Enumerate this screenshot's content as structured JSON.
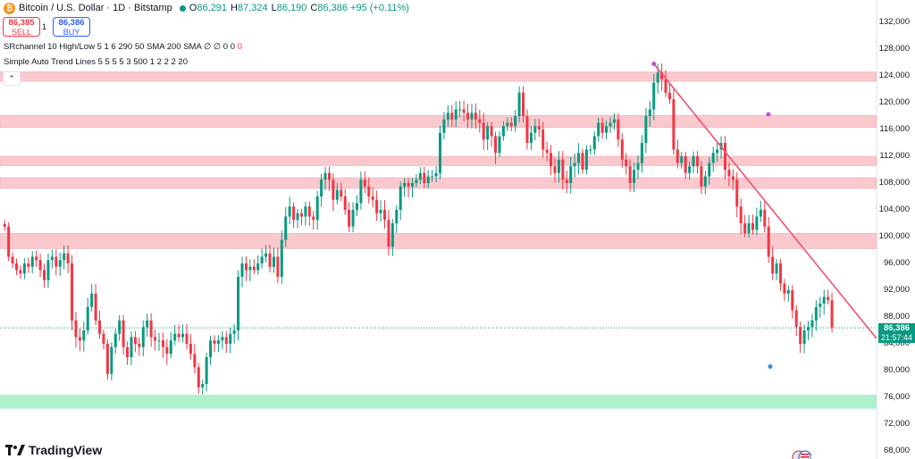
{
  "header": {
    "logo_glyph": "₿",
    "title": "Bitcoin / U.S. Dollar · 1D · Bitstamp",
    "o_label": "O",
    "o_val": "86,291",
    "h_label": "H",
    "h_val": "87,324",
    "l_label": "L",
    "l_val": "86,190",
    "c_label": "C",
    "c_val": "86,386 +95 (+0.11%)"
  },
  "trade": {
    "sell_price": "86,385",
    "sell_label": "SELL",
    "spread": "1",
    "buy_price": "86,386",
    "buy_label": "BUY"
  },
  "indicators": {
    "sr_name": "SRchannel 10 High/Low 5 1 6 290 50 SMA 200 SMA",
    "sr_vals": "∅ ∅ 0 0",
    "sr_vals_red": "0",
    "trend_name": "Simple Auto Trend Lines 5 5 5 5 3 500 1 2 2 2 20"
  },
  "collapse_glyph": "⌃",
  "price_axis": [
    "132,000",
    "128,000",
    "124,000",
    "120,000",
    "116,000",
    "112,000",
    "108,000",
    "104,000",
    "100,000",
    "96,000",
    "92,000",
    "88,000",
    "84,000",
    "80,000",
    "76,000",
    "72,000",
    "68,000"
  ],
  "last_price": {
    "value": "86,386",
    "countdown": "21:57:44"
  },
  "brand": {
    "name": "TradingView"
  },
  "colors": {
    "up": "#089981",
    "down": "#f23645",
    "resistance_zone": "#f7b7bd",
    "support_zone": "#9ff0c3",
    "trendline": "#f0506e"
  },
  "chart_data": {
    "type": "candlestick",
    "y_range": [
      68000,
      133000
    ],
    "close_series": [
      101500,
      97000,
      96000,
      95000,
      94500,
      96000,
      95500,
      97000,
      96500,
      95000,
      93500,
      96500,
      97000,
      95500,
      96500,
      97500,
      96000,
      87500,
      85000,
      84500,
      86000,
      89500,
      91500,
      87500,
      85500,
      84000,
      79500,
      83500,
      85500,
      87500,
      83500,
      82000,
      85000,
      84000,
      83500,
      86500,
      87500,
      85000,
      84500,
      84500,
      83500,
      82500,
      84500,
      85500,
      85000,
      85500,
      84000,
      82500,
      80500,
      77500,
      78000,
      82000,
      84500,
      84000,
      84500,
      85000,
      84000,
      85500,
      86000,
      94000,
      96000,
      95000,
      95500,
      95000,
      96000,
      97000,
      97500,
      95500,
      97000,
      94000,
      99500,
      103000,
      104500,
      102500,
      103500,
      103000,
      104500,
      103000,
      102500,
      106000,
      108500,
      109500,
      108500,
      105500,
      107000,
      106000,
      104000,
      101500,
      104000,
      105000,
      108500,
      107500,
      106000,
      105500,
      103500,
      104000,
      102500,
      98500,
      102000,
      104000,
      107500,
      108000,
      107500,
      108000,
      108500,
      109500,
      108000,
      109000,
      109000,
      109500,
      115500,
      117500,
      118500,
      117500,
      119000,
      119000,
      118500,
      117500,
      118500,
      117500,
      117000,
      114500,
      116500,
      115000,
      112500,
      115000,
      116500,
      117000,
      116500,
      118000,
      121500,
      118000,
      114000,
      115500,
      116500,
      116000,
      113000,
      112500,
      110500,
      109500,
      111500,
      108500,
      108000,
      110500,
      111000,
      112500,
      110000,
      113000,
      113000,
      115000,
      117000,
      115500,
      116500,
      117000,
      117500,
      114500,
      111500,
      110500,
      108000,
      110000,
      111000,
      114000,
      118000,
      119000,
      123000,
      124500,
      123500,
      121500,
      120500,
      113000,
      111000,
      112000,
      109500,
      110500,
      112000,
      110500,
      107500,
      109000,
      111000,
      112500,
      113000,
      114000,
      110000,
      109000,
      108500,
      104500,
      102000,
      100500,
      102000,
      101000,
      103000,
      104000,
      101500,
      97000,
      94500,
      96000,
      93000,
      91500,
      92000,
      89000,
      86500,
      84000,
      86000,
      86500,
      87500,
      89500,
      90000,
      91000,
      90500,
      86400
    ],
    "resistance_zones": [
      [
        123200,
        124600
      ],
      [
        116300,
        118100
      ],
      [
        110600,
        112000
      ],
      [
        107200,
        108800
      ],
      [
        98200,
        100500
      ]
    ],
    "support_zones": [
      [
        74300,
        76400
      ]
    ],
    "trendline": {
      "from_close_index": 164,
      "from_price": 125800,
      "to_price": 84800
    },
    "last_price": 86386
  }
}
